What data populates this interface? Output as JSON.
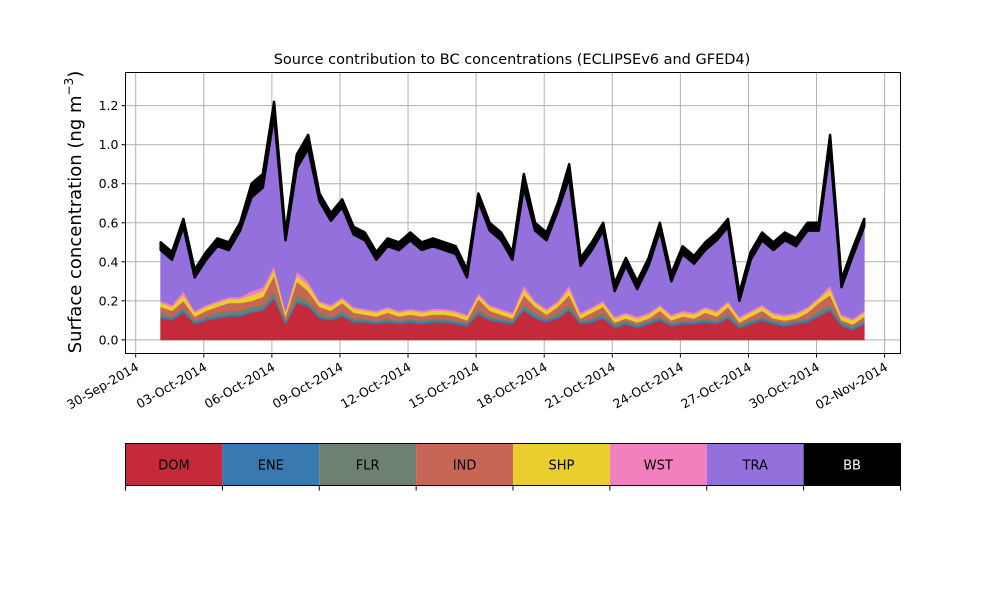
{
  "chart_data": {
    "type": "area",
    "stacked": true,
    "title": "Source contribution to BC concentrations (ECLIPSEv6 and GFED4)",
    "xlabel": "",
    "ylabel": "Surface concentration (ng m",
    "ylabel_superscript": "−3",
    "ylabel_close": ")",
    "ylim": [
      -0.07,
      1.37
    ],
    "xlim_days_since_30Sep2014": [
      -0.45,
      33.7
    ],
    "x_start_days_since_30Sep2014": 1.1,
    "x_step_days": 0.5,
    "grid": true,
    "yticks": [
      0.0,
      0.2,
      0.4,
      0.6,
      0.8,
      1.0,
      1.2
    ],
    "ytick_labels": [
      "0.0",
      "0.2",
      "0.4",
      "0.6",
      "0.8",
      "1.0",
      "1.2"
    ],
    "xticks_days_since_30Sep2014": [
      0,
      3,
      6,
      9,
      12,
      15,
      18,
      21,
      24,
      27,
      30,
      33
    ],
    "xtick_labels": [
      "30-Sep-2014",
      "03-Oct-2014",
      "06-Oct-2014",
      "09-Oct-2014",
      "12-Oct-2014",
      "15-Oct-2014",
      "18-Oct-2014",
      "21-Oct-2014",
      "24-Oct-2014",
      "27-Oct-2014",
      "30-Oct-2014",
      "02-Nov-2014"
    ],
    "legend_placement": "below",
    "series": [
      {
        "name": "DOM",
        "color": "#c42a39",
        "label_color": "#000000",
        "values": [
          0.11,
          0.1,
          0.14,
          0.08,
          0.1,
          0.11,
          0.12,
          0.12,
          0.14,
          0.15,
          0.21,
          0.08,
          0.19,
          0.17,
          0.11,
          0.1,
          0.12,
          0.09,
          0.09,
          0.08,
          0.09,
          0.08,
          0.09,
          0.08,
          0.09,
          0.09,
          0.08,
          0.07,
          0.13,
          0.1,
          0.09,
          0.08,
          0.15,
          0.11,
          0.09,
          0.11,
          0.15,
          0.08,
          0.09,
          0.11,
          0.06,
          0.08,
          0.06,
          0.08,
          0.1,
          0.07,
          0.08,
          0.08,
          0.09,
          0.08,
          0.11,
          0.06,
          0.08,
          0.1,
          0.08,
          0.07,
          0.08,
          0.09,
          0.12,
          0.15,
          0.07,
          0.05,
          0.08
        ]
      },
      {
        "name": "ENE",
        "color": "#3979b0",
        "label_color": "#000000",
        "values": [
          0.01,
          0.01,
          0.01,
          0.01,
          0.01,
          0.01,
          0.01,
          0.01,
          0.01,
          0.01,
          0.01,
          0.01,
          0.01,
          0.01,
          0.01,
          0.01,
          0.01,
          0.01,
          0.01,
          0.01,
          0.01,
          0.01,
          0.01,
          0.01,
          0.01,
          0.01,
          0.01,
          0.01,
          0.01,
          0.01,
          0.01,
          0.01,
          0.01,
          0.01,
          0.01,
          0.01,
          0.01,
          0.01,
          0.01,
          0.01,
          0.01,
          0.01,
          0.01,
          0.01,
          0.01,
          0.01,
          0.01,
          0.01,
          0.01,
          0.01,
          0.01,
          0.01,
          0.01,
          0.01,
          0.01,
          0.01,
          0.01,
          0.01,
          0.01,
          0.01,
          0.01,
          0.01,
          0.01
        ]
      },
      {
        "name": "FLR",
        "color": "#6e8170",
        "label_color": "#000000",
        "values": [
          0.02,
          0.01,
          0.02,
          0.01,
          0.01,
          0.02,
          0.02,
          0.02,
          0.02,
          0.02,
          0.03,
          0.01,
          0.03,
          0.02,
          0.02,
          0.01,
          0.02,
          0.01,
          0.01,
          0.01,
          0.01,
          0.01,
          0.01,
          0.01,
          0.01,
          0.01,
          0.01,
          0.01,
          0.02,
          0.01,
          0.01,
          0.01,
          0.02,
          0.02,
          0.01,
          0.02,
          0.02,
          0.01,
          0.01,
          0.02,
          0.01,
          0.01,
          0.01,
          0.01,
          0.01,
          0.01,
          0.01,
          0.01,
          0.01,
          0.01,
          0.02,
          0.01,
          0.01,
          0.01,
          0.01,
          0.01,
          0.01,
          0.01,
          0.02,
          0.02,
          0.01,
          0.01,
          0.01
        ]
      },
      {
        "name": "IND",
        "color": "#c86656",
        "label_color": "#000000",
        "values": [
          0.03,
          0.03,
          0.03,
          0.02,
          0.03,
          0.03,
          0.04,
          0.04,
          0.03,
          0.04,
          0.08,
          0.02,
          0.07,
          0.05,
          0.03,
          0.03,
          0.04,
          0.03,
          0.02,
          0.02,
          0.03,
          0.02,
          0.02,
          0.02,
          0.02,
          0.02,
          0.02,
          0.01,
          0.05,
          0.03,
          0.02,
          0.01,
          0.05,
          0.03,
          0.02,
          0.03,
          0.05,
          0.01,
          0.03,
          0.03,
          0.01,
          0.01,
          0.01,
          0.01,
          0.03,
          0.01,
          0.02,
          0.01,
          0.03,
          0.02,
          0.03,
          0.01,
          0.02,
          0.03,
          0.01,
          0.01,
          0.01,
          0.03,
          0.04,
          0.05,
          0.01,
          0.01,
          0.02
        ]
      },
      {
        "name": "SHP",
        "color": "#e8cf2d",
        "label_color": "#000000",
        "values": [
          0.02,
          0.02,
          0.03,
          0.02,
          0.02,
          0.02,
          0.02,
          0.02,
          0.03,
          0.03,
          0.03,
          0.02,
          0.03,
          0.03,
          0.02,
          0.02,
          0.02,
          0.02,
          0.02,
          0.02,
          0.02,
          0.02,
          0.02,
          0.02,
          0.02,
          0.02,
          0.02,
          0.02,
          0.02,
          0.02,
          0.02,
          0.02,
          0.03,
          0.02,
          0.02,
          0.02,
          0.03,
          0.02,
          0.02,
          0.02,
          0.02,
          0.02,
          0.02,
          0.02,
          0.02,
          0.02,
          0.02,
          0.02,
          0.02,
          0.02,
          0.02,
          0.02,
          0.02,
          0.02,
          0.02,
          0.02,
          0.02,
          0.02,
          0.02,
          0.03,
          0.02,
          0.02,
          0.02
        ]
      },
      {
        "name": "WST",
        "color": "#f280bf",
        "label_color": "#000000",
        "values": [
          0.01,
          0.01,
          0.02,
          0.01,
          0.01,
          0.01,
          0.01,
          0.01,
          0.02,
          0.02,
          0.02,
          0.01,
          0.02,
          0.02,
          0.01,
          0.01,
          0.01,
          0.01,
          0.01,
          0.01,
          0.01,
          0.01,
          0.01,
          0.01,
          0.01,
          0.01,
          0.01,
          0.01,
          0.01,
          0.01,
          0.01,
          0.01,
          0.02,
          0.01,
          0.01,
          0.01,
          0.02,
          0.01,
          0.01,
          0.01,
          0.01,
          0.01,
          0.01,
          0.01,
          0.01,
          0.01,
          0.01,
          0.01,
          0.01,
          0.01,
          0.01,
          0.01,
          0.01,
          0.01,
          0.01,
          0.01,
          0.01,
          0.01,
          0.01,
          0.02,
          0.01,
          0.01,
          0.01
        ]
      },
      {
        "name": "TRA",
        "color": "#9370db",
        "label_color": "#000000",
        "values": [
          0.26,
          0.23,
          0.33,
          0.17,
          0.23,
          0.28,
          0.24,
          0.34,
          0.48,
          0.51,
          0.77,
          0.36,
          0.53,
          0.68,
          0.51,
          0.43,
          0.46,
          0.37,
          0.35,
          0.26,
          0.31,
          0.31,
          0.35,
          0.31,
          0.32,
          0.3,
          0.29,
          0.19,
          0.47,
          0.38,
          0.35,
          0.27,
          0.5,
          0.36,
          0.35,
          0.46,
          0.55,
          0.24,
          0.29,
          0.36,
          0.13,
          0.24,
          0.14,
          0.24,
          0.38,
          0.17,
          0.29,
          0.25,
          0.29,
          0.36,
          0.38,
          0.08,
          0.26,
          0.33,
          0.32,
          0.38,
          0.34,
          0.39,
          0.34,
          0.7,
          0.14,
          0.32,
          0.43
        ]
      },
      {
        "name": "BB",
        "color": "#000000",
        "label_color": "#ffffff",
        "values": [
          0.04,
          0.04,
          0.04,
          0.04,
          0.04,
          0.04,
          0.04,
          0.04,
          0.07,
          0.07,
          0.07,
          0.04,
          0.07,
          0.07,
          0.04,
          0.04,
          0.04,
          0.04,
          0.04,
          0.04,
          0.04,
          0.04,
          0.04,
          0.04,
          0.04,
          0.04,
          0.04,
          0.04,
          0.04,
          0.04,
          0.04,
          0.04,
          0.07,
          0.04,
          0.04,
          0.04,
          0.07,
          0.04,
          0.04,
          0.04,
          0.04,
          0.04,
          0.04,
          0.04,
          0.04,
          0.04,
          0.04,
          0.04,
          0.04,
          0.04,
          0.04,
          0.04,
          0.04,
          0.04,
          0.04,
          0.04,
          0.04,
          0.04,
          0.04,
          0.07,
          0.04,
          0.04,
          0.04
        ]
      }
    ]
  }
}
